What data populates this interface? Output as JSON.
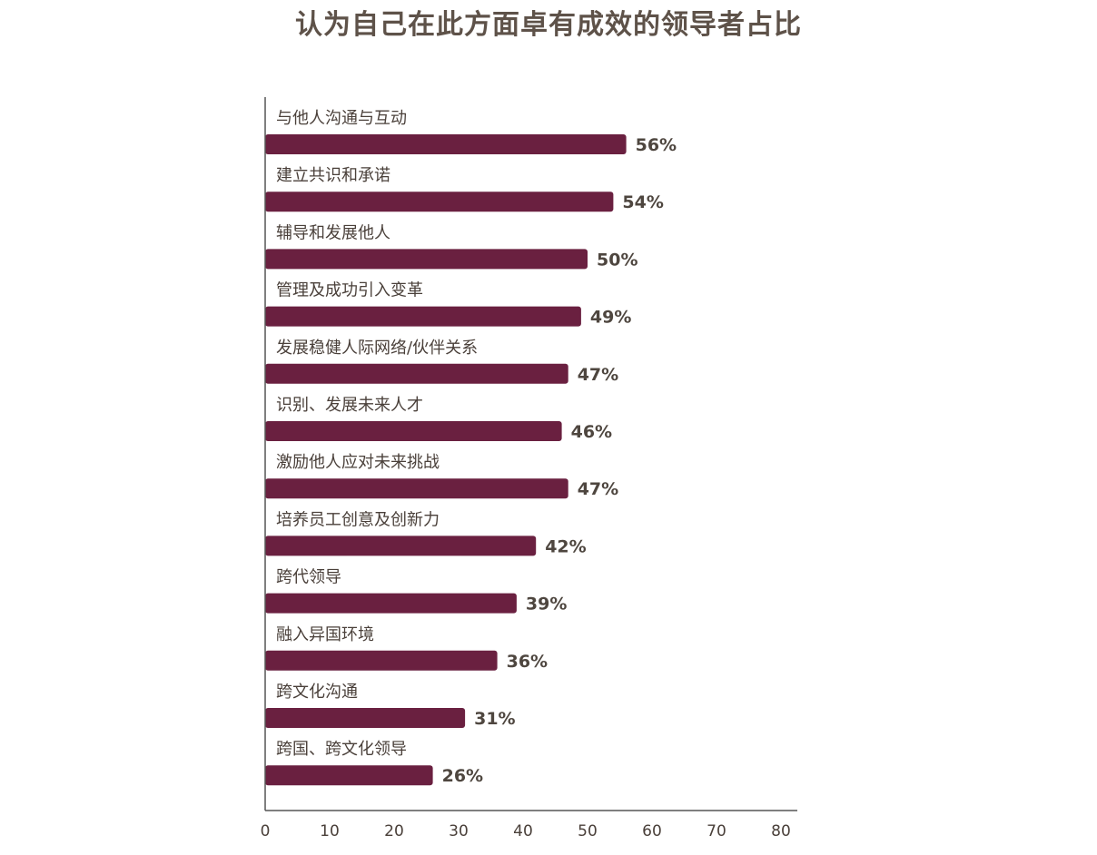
{
  "chart_data": {
    "type": "bar",
    "orientation": "horizontal",
    "title": "认为自己在此方面卓有成效的领导者占比",
    "categories": [
      "与他人沟通与互动",
      "建立共识和承诺",
      "辅导和发展他人",
      "管理及成功引入变革",
      "发展稳健人际网络/伙伴关系",
      "识别、发展未来人才",
      "激励他人应对未来挑战",
      "培养员工创意及创新力",
      "跨代领导",
      "融入异国环境",
      "跨文化沟通",
      "跨国、跨文化领导"
    ],
    "values": [
      56,
      54,
      50,
      49,
      47,
      46,
      47,
      42,
      39,
      36,
      31,
      26
    ],
    "value_labels": [
      "56%",
      "54%",
      "50%",
      "49%",
      "47%",
      "46%",
      "47%",
      "42%",
      "39%",
      "36%",
      "31%",
      "26%"
    ],
    "xlim": [
      0,
      80
    ],
    "xticks": [
      "0",
      "10",
      "20",
      "30",
      "40",
      "50",
      "60",
      "70",
      "80"
    ],
    "grid": false,
    "legend": "none",
    "bar_color": "#6a2040",
    "text_color": "#4a403a",
    "title_color": "#5e5249",
    "axis_color": "#555555"
  }
}
